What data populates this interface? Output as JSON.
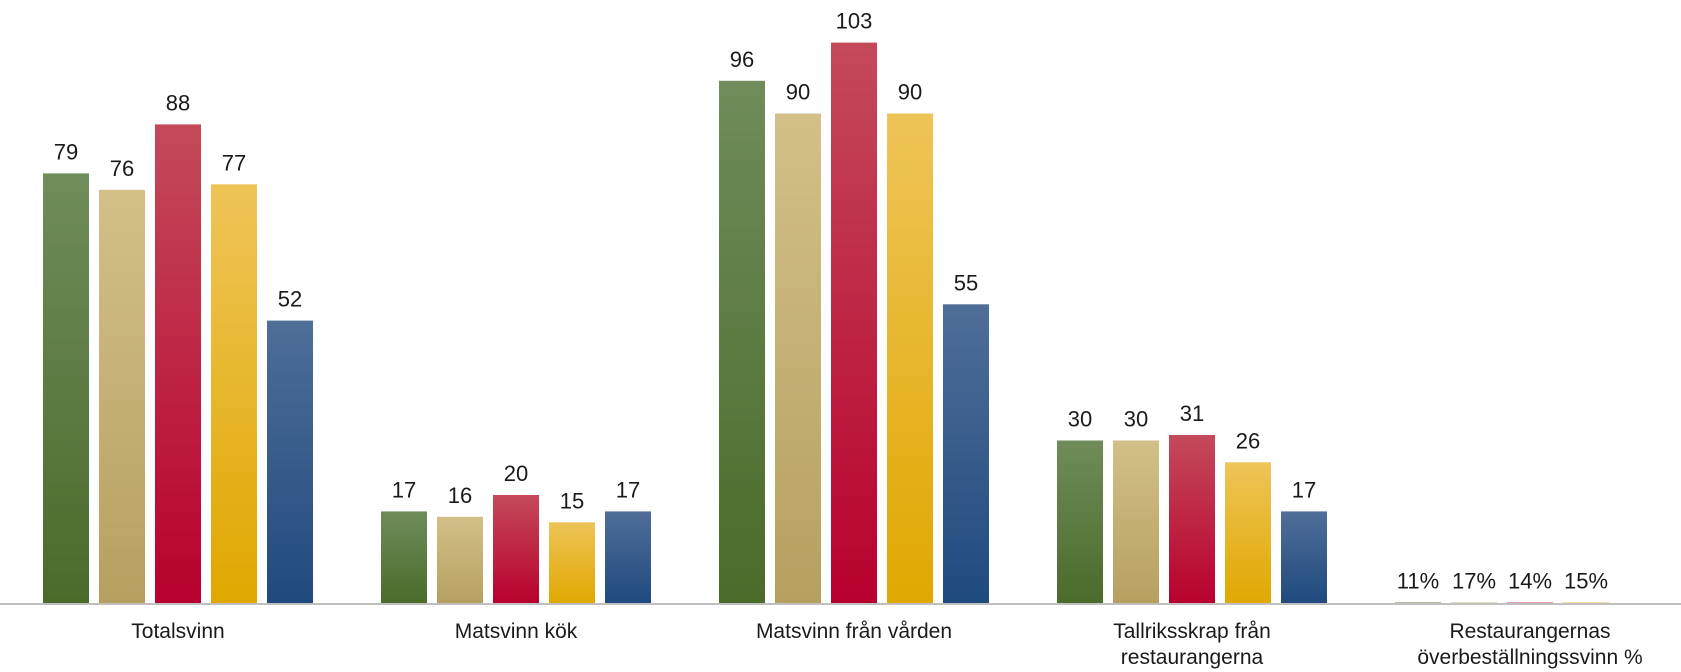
{
  "chart_data": {
    "type": "bar",
    "title": "",
    "xlabel": "",
    "ylabel": "",
    "ylim": [
      0,
      103
    ],
    "grid": false,
    "legend": "none",
    "categories": [
      [
        "Totalsvinn"
      ],
      [
        "Matsvinn kök"
      ],
      [
        "Matsvinn från vården"
      ],
      [
        "Tallriksskrap från",
        "restaurangerna"
      ],
      [
        "Restaurangernas",
        "överbeställningssvinn %"
      ]
    ],
    "series": [
      {
        "values": [
          79,
          17,
          96,
          30,
          0.11
        ],
        "labels": [
          "79",
          "17",
          "96",
          "30",
          "11%"
        ],
        "color_top": "#6f8c5a",
        "color_bottom": "#4a6b2a"
      },
      {
        "values": [
          76,
          16,
          90,
          30,
          0.17
        ],
        "labels": [
          "76",
          "16",
          "90",
          "30",
          "17%"
        ],
        "color_top": "#d2c088",
        "color_bottom": "#b6a060"
      },
      {
        "values": [
          88,
          20,
          103,
          31,
          0.14
        ],
        "labels": [
          "88",
          "20",
          "103",
          "31",
          "14%"
        ],
        "color_top": "#c44a5a",
        "color_bottom": "#b8002e"
      },
      {
        "values": [
          77,
          15,
          90,
          26,
          0.15
        ],
        "labels": [
          "77",
          "15",
          "90",
          "26",
          "15%"
        ],
        "color_top": "#eec458",
        "color_bottom": "#e0a800"
      },
      {
        "values": [
          52,
          17,
          55,
          17,
          null
        ],
        "labels": [
          "52",
          "17",
          "55",
          "17",
          ""
        ],
        "color_top": "#4f6e98",
        "color_bottom": "#1f4a7e"
      }
    ],
    "axis_color": "#bfbfbf"
  }
}
